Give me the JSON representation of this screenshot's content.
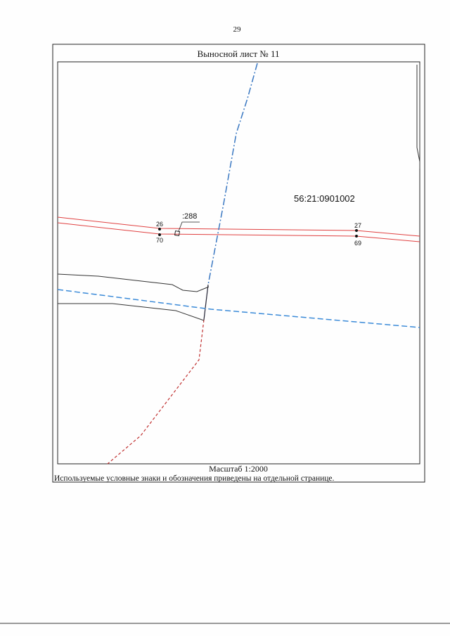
{
  "page_number": "29",
  "sheet": {
    "title": "Выносной лист № 11",
    "map": {
      "block_number": "56:21:0901002",
      "parcel_label": ":288",
      "points": [
        {
          "label": "26"
        },
        {
          "label": "70"
        },
        {
          "label": "27"
        },
        {
          "label": "69"
        }
      ]
    },
    "scale": "Масштаб 1:2000",
    "note": "Используемые условные знаки и обозначения приведены на отдельной странице."
  }
}
